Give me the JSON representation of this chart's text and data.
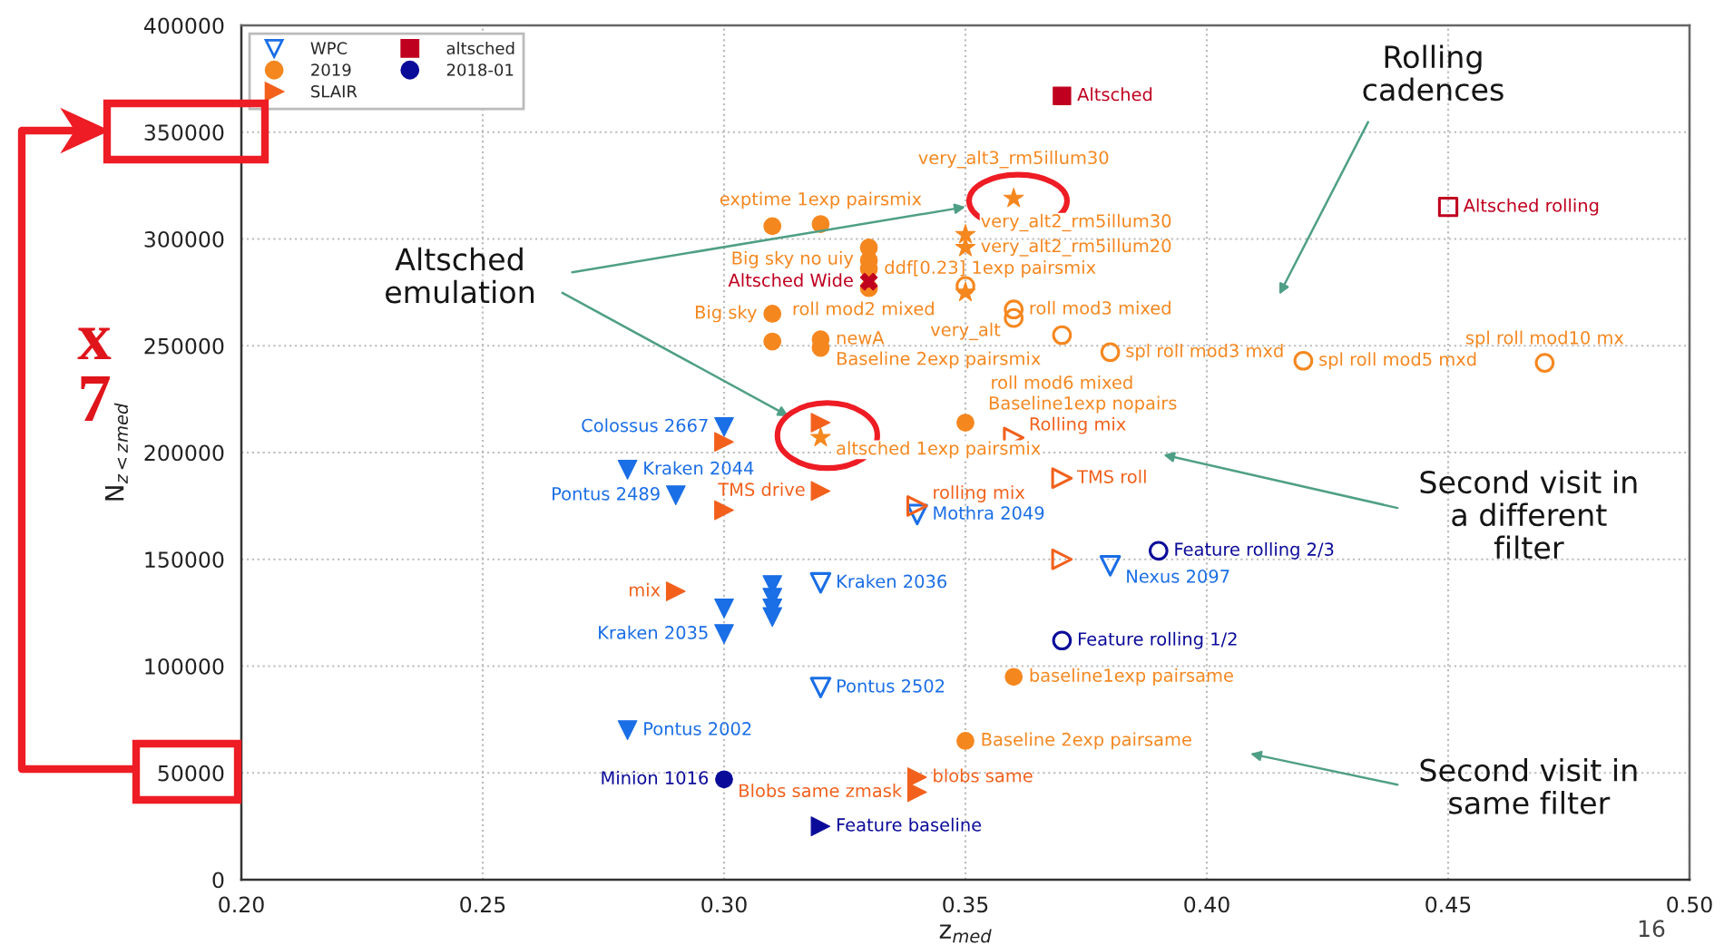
{
  "chart_data": {
    "type": "scatter",
    "xlabel": "z$_{med}$",
    "ylabel": "N$_{z<z}$$_{med}$",
    "xlim": [
      0.2,
      0.5
    ],
    "xticks": [
      {
        "value": 0.2,
        "label": "0.20"
      },
      {
        "value": 0.25,
        "label": "0.25"
      },
      {
        "value": 0.3,
        "label": "0.30"
      },
      {
        "value": 0.35,
        "label": "0.35"
      },
      {
        "value": 0.4,
        "label": "0.40"
      },
      {
        "value": 0.45,
        "label": "0.45"
      },
      {
        "value": 0.5,
        "label": "0.50"
      }
    ],
    "ylim": [
      0,
      400000
    ],
    "yticks": [
      0,
      50000,
      100000,
      150000,
      200000,
      250000,
      300000,
      350000,
      400000
    ],
    "grid": true,
    "legend": "top left",
    "series": [
      {
        "name": "WPC",
        "color": "#1a6ee6",
        "marker": "triangle",
        "x": [
          0.32,
          0.32,
          0.34,
          0.38
        ],
        "values": [
          139000,
          90000,
          171000,
          147000
        ],
        "value_labels": [
          "Kraken 2036",
          "Pontus 2502",
          "Mothra 2049",
          "Nexus 2097"
        ]
      },
      {
        "color": "#1a6ee6",
        "marker": "triangle",
        "x": [
          0.3,
          0.28,
          0.29,
          0.3,
          0.28,
          0.3,
          0.31,
          0.31,
          0.31,
          0.31
        ],
        "values": [
          212000,
          192000,
          180000,
          115000,
          70000,
          127000,
          138000,
          132000,
          127000,
          123000
        ],
        "value_labels": [
          "Colossus 2667",
          "Kraken 2044",
          "Pontus 2489",
          "Kraken 2035",
          "Pontus 2002",
          null,
          null,
          null,
          null,
          null
        ]
      },
      {
        "name": "2019",
        "color": "#f5871f",
        "marker": "circle",
        "x": [
          0.31,
          0.32,
          0.33,
          0.33,
          0.33,
          0.33,
          0.31,
          0.31,
          0.32,
          0.32,
          0.35,
          0.36,
          0.35
        ],
        "values": [
          306000,
          307000,
          296000,
          290000,
          286000,
          277000,
          265000,
          252000,
          253000,
          249000,
          214000,
          95000,
          65000
        ],
        "value_labels": [
          null,
          "exptime 1exp pairsmix",
          "Big sky no uiy",
          null,
          "ddf[0.23] 1exp pairsmix",
          null,
          "Big sky",
          null,
          "newA",
          "Baseline 2exp pairsmix",
          "Baseline1exp nopairs",
          "baseline1exp pairsame",
          "Baseline 2exp pairsame"
        ]
      },
      {
        "color": "#f5871f",
        "marker": "circle",
        "x": [
          0.35,
          0.36,
          0.36,
          0.37,
          0.38,
          0.42,
          0.47
        ],
        "values": [
          278000,
          267000,
          263000,
          255000,
          247000,
          243000,
          242000
        ],
        "value_labels": [
          "roll mod2 mixed",
          "roll mod3 mixed",
          null,
          "roll mod6 mixed",
          "spl roll mod3 mxd",
          "spl roll mod5 mxd",
          "spl roll mod10 mx"
        ]
      },
      {
        "color": "#f5871f",
        "marker": "star",
        "x": [
          0.36,
          0.35,
          0.35,
          0.35,
          0.32
        ],
        "values": [
          319000,
          302000,
          296000,
          275000,
          207000
        ],
        "value_labels": [
          "very_alt3_rm5illum30",
          "very_alt2_rm5illum30",
          "very_alt2_rm5illum20",
          "very_alt",
          "altsched 1exp pairsmix"
        ]
      },
      {
        "name": "SLAIR",
        "color": "#f2601c",
        "marker": "triangle",
        "x": [
          0.32,
          0.29,
          0.34,
          0.34,
          0.3,
          0.3,
          0.32
        ],
        "values": [
          182000,
          135000,
          48000,
          41000,
          173000,
          205000,
          214000
        ],
        "value_labels": [
          "TMS drive",
          "mix",
          "blobs same",
          "Blobs same zmask",
          null,
          null,
          null
        ]
      },
      {
        "color": "#f2601c",
        "marker": "triangle",
        "x": [
          0.37,
          0.34,
          0.36,
          0.37
        ],
        "values": [
          188000,
          175000,
          207000,
          150000
        ],
        "value_labels": [
          "TMS roll",
          "rolling mix",
          "Rolling mix",
          null
        ]
      },
      {
        "name": "altsched",
        "color": "#c0001f",
        "marker": "square",
        "x": [
          0.37
        ],
        "values": [
          367000
        ],
        "value_labels": [
          "Altsched"
        ]
      },
      {
        "color": "#c0001f",
        "marker": "square",
        "x": [
          0.45
        ],
        "values": [
          315000
        ],
        "value_labels": [
          "Altsched rolling"
        ]
      },
      {
        "color": "#c0001f",
        "marker": "cross",
        "x": [
          0.33
        ],
        "values": [
          280000
        ],
        "value_labels": [
          "Altsched Wide"
        ]
      },
      {
        "name": "2018-01",
        "color": "#0b0b9a",
        "marker": "circle",
        "x": [
          0.3
        ],
        "values": [
          47000
        ],
        "value_labels": [
          "Minion 1016"
        ]
      },
      {
        "color": "#0b0b9a",
        "marker": "circle",
        "x": [
          0.37,
          0.39
        ],
        "values": [
          112000,
          154000
        ],
        "value_labels": [
          "Feature rolling 1/2",
          "Feature rolling 2/3"
        ]
      },
      {
        "color": "#0b0b9a",
        "marker": "triangle",
        "x": [
          0.32
        ],
        "values": [
          25000
        ],
        "value_labels": [
          "Feature baseline"
        ]
      }
    ],
    "annotations": [
      "Altsched\nemulation",
      "Rolling\ncadences",
      "Second visit in\na different\nfilter",
      "Second visit in\nsame filter",
      "x\n7",
      "16"
    ]
  }
}
